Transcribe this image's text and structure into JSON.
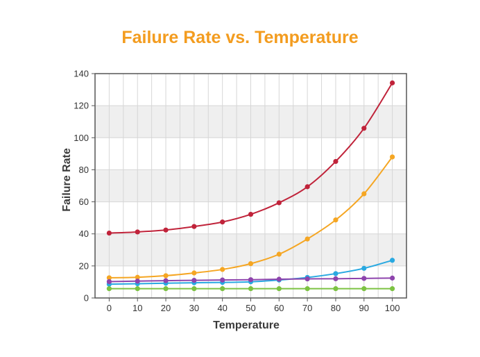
{
  "chart_data": {
    "type": "line",
    "title": "Failure Rate vs. Temperature",
    "xlabel": "Temperature",
    "ylabel": "Failure Rate",
    "x": [
      0,
      10,
      20,
      30,
      40,
      50,
      60,
      70,
      80,
      90,
      100
    ],
    "xlim": [
      -5,
      105
    ],
    "ylim": [
      0,
      140
    ],
    "xticks": [
      "0",
      "10",
      "20",
      "30",
      "40",
      "50",
      "60",
      "70",
      "80",
      "90",
      "100"
    ],
    "yticks": [
      "0",
      "20",
      "40",
      "60",
      "80",
      "100",
      "120",
      "140"
    ],
    "grid": true,
    "legend": "none",
    "title_color": "#f39c1f",
    "series": [
      {
        "color": "#c0233a",
        "values": [
          40.5,
          41.2,
          42.4,
          44.6,
          47.4,
          52.2,
          59.4,
          69.4,
          85.2,
          105.9,
          134.2
        ]
      },
      {
        "color": "#f5a623",
        "values": [
          12.6,
          12.9,
          13.9,
          15.6,
          17.8,
          21.4,
          27.3,
          36.8,
          48.7,
          65.0,
          88.0
        ]
      },
      {
        "color": "#29a9e1",
        "values": [
          8.6,
          8.9,
          9.2,
          9.5,
          9.7,
          10.1,
          11.2,
          12.8,
          15.2,
          18.5,
          23.5
        ]
      },
      {
        "color": "#8e44ad",
        "values": [
          10.2,
          10.5,
          10.8,
          11.0,
          11.2,
          11.4,
          11.7,
          11.9,
          12.0,
          12.2,
          12.4
        ]
      },
      {
        "color": "#7cc242",
        "values": [
          5.8,
          5.8,
          5.8,
          5.8,
          5.8,
          5.8,
          5.8,
          5.8,
          5.8,
          5.8,
          5.8
        ]
      }
    ]
  }
}
